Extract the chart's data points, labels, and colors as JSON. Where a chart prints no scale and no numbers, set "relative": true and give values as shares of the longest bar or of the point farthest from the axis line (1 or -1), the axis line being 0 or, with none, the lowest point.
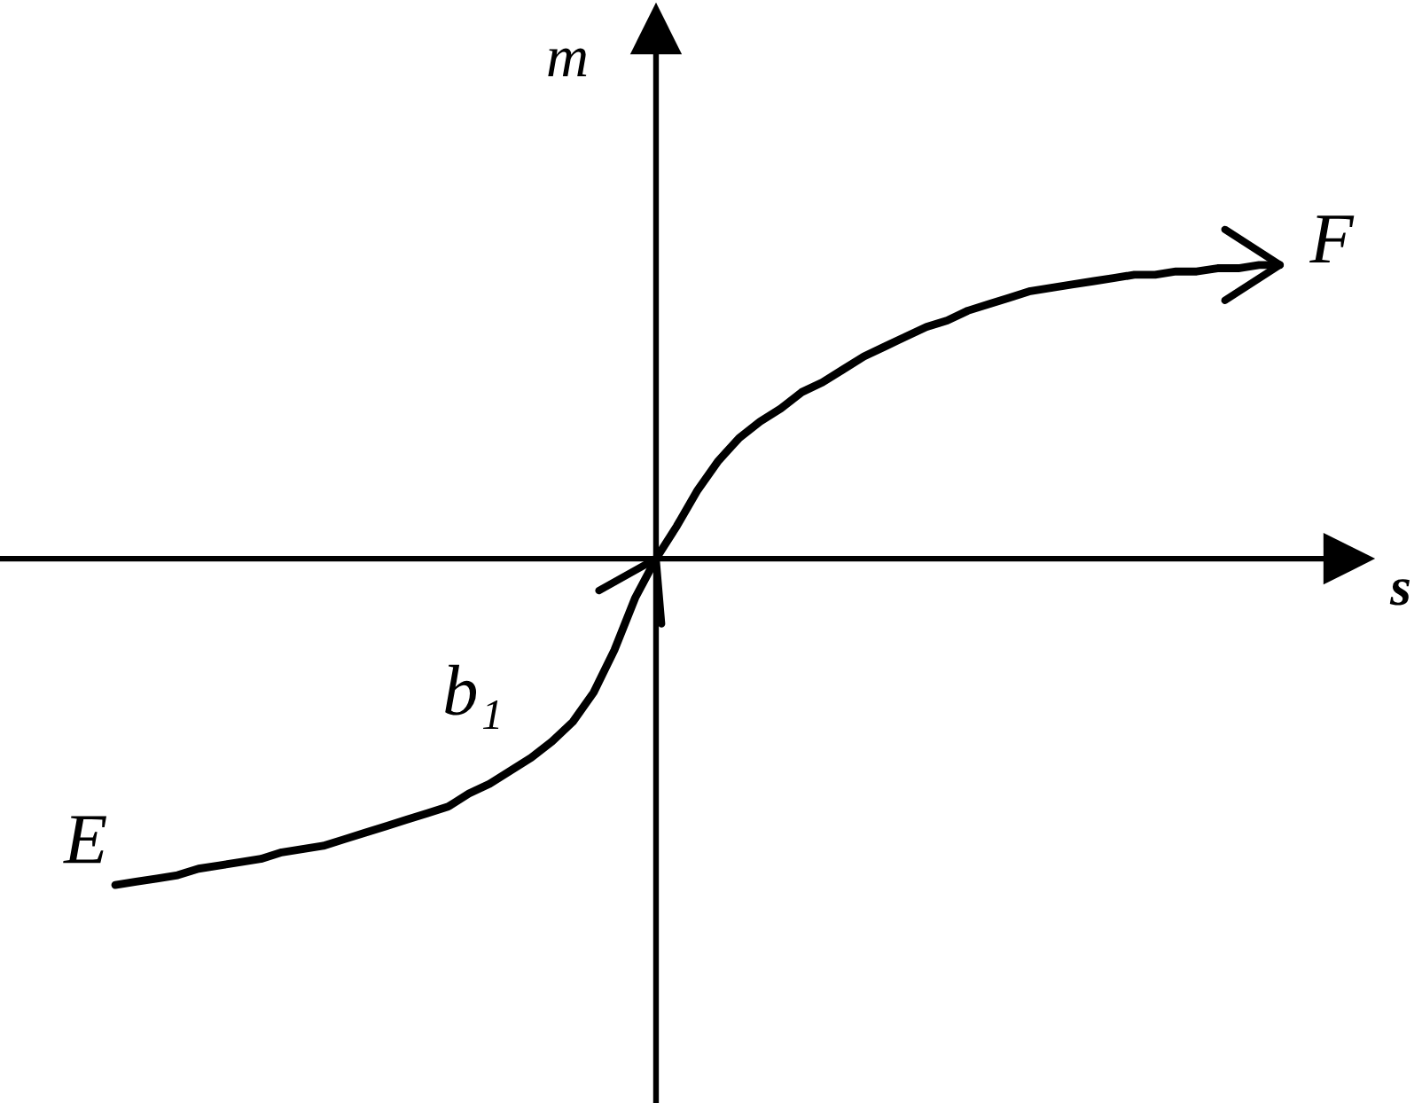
{
  "chart_data": {
    "type": "line",
    "relative": true,
    "xlabel": "s",
    "ylabel": "m",
    "categories": [
      null,
      null,
      null,
      null,
      null,
      null,
      null,
      null,
      null,
      null,
      null,
      null,
      null,
      null,
      null,
      null,
      null,
      null,
      null,
      null,
      null,
      null,
      null,
      null,
      null,
      null,
      null,
      null,
      null,
      null,
      null,
      null,
      null,
      null,
      null,
      null,
      null,
      null,
      null,
      null,
      null,
      null,
      null,
      null,
      null,
      null,
      null,
      null,
      null,
      null,
      null,
      null,
      null,
      null,
      null,
      null,
      null
    ],
    "series": [
      {
        "name": "b₁",
        "color": "#000000",
        "values": [
          -1,
          -0.99,
          -0.98,
          -0.97,
          -0.95,
          -0.94,
          -0.93,
          -0.92,
          -0.9,
          -0.89,
          -0.88,
          -0.86,
          -0.84,
          -0.82,
          -0.8,
          -0.78,
          -0.76,
          -0.72,
          -0.69,
          -0.65,
          -0.61,
          -0.56,
          -0.5,
          -0.41,
          -0.28,
          -0.12,
          0,
          null,
          null,
          null,
          null,
          null,
          null,
          null,
          null,
          null,
          null,
          null,
          null,
          null,
          null,
          null,
          null,
          null,
          null,
          null,
          null,
          null,
          null,
          null,
          null,
          null,
          null,
          null,
          null,
          null,
          null
        ]
      },
      {
        "color": "#000000",
        "values": [
          null,
          null,
          null,
          null,
          null,
          null,
          null,
          null,
          null,
          null,
          null,
          null,
          null,
          null,
          null,
          null,
          null,
          null,
          null,
          null,
          null,
          null,
          null,
          null,
          null,
          null,
          0,
          0.1,
          0.21,
          0.3,
          0.37,
          0.42,
          0.46,
          0.51,
          0.54,
          0.58,
          0.62,
          0.65,
          0.68,
          0.71,
          0.73,
          0.76,
          0.78,
          0.8,
          0.82,
          0.83,
          0.84,
          0.85,
          0.86,
          0.87,
          0.87,
          0.88,
          0.88,
          0.89,
          0.89,
          0.9,
          0.9
        ]
      }
    ],
    "annotations": [
      "E",
      "F"
    ]
  }
}
